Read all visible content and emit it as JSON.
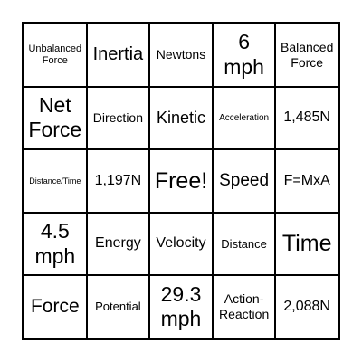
{
  "board": {
    "cells": [
      "Unbalanced Force",
      "Inertia",
      "Newtons",
      "6 mph",
      "Balanced Force",
      "Net Force",
      "Direction",
      "Kinetic",
      "Acceleration",
      "1,485N",
      "Distance/Time",
      "1,197N",
      "Free!",
      "Speed",
      "F=MxA",
      "4.5 mph",
      "Energy",
      "Velocity",
      "Distance",
      "Time",
      "Force",
      "Potential",
      "29.3 mph",
      "Action-Reaction",
      "2,088N"
    ]
  }
}
